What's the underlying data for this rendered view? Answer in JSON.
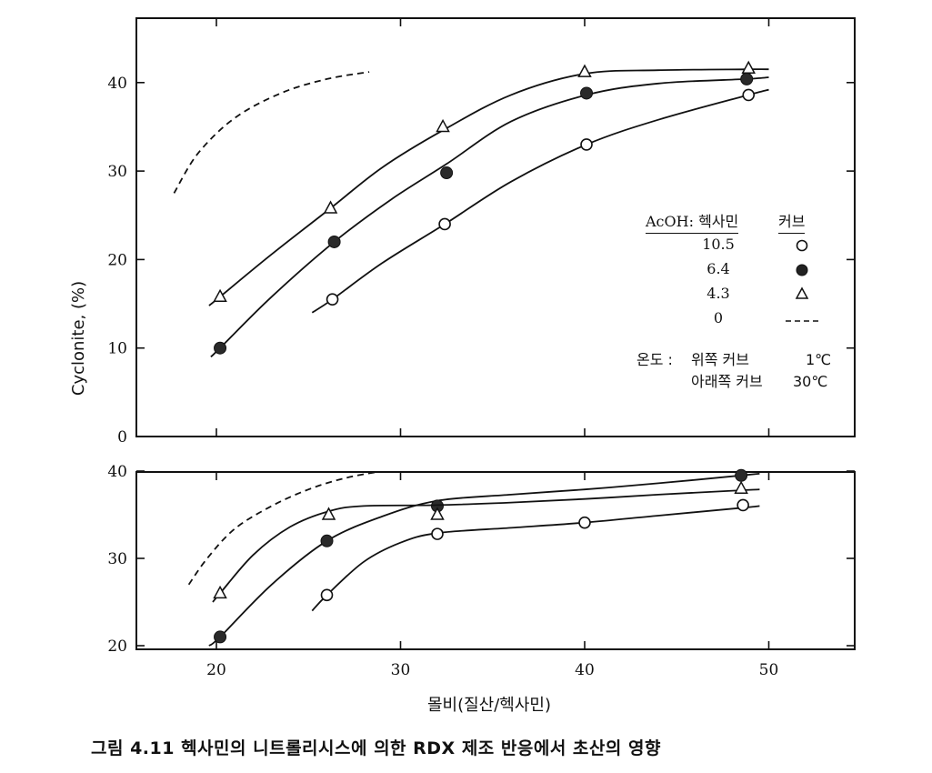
{
  "chart_data": [
    {
      "type": "line",
      "ylabel": "Cyclonite, (%)",
      "xlabel": "",
      "xlim": [
        16,
        55
      ],
      "ylim": [
        0,
        47
      ],
      "y_ticks": [
        "0",
        "10",
        "20",
        "30",
        "40"
      ],
      "y_tick_values": [
        0,
        10,
        20,
        30,
        40
      ],
      "x_tick_values": [
        20,
        30,
        40,
        50
      ],
      "series": [
        {
          "key": "c105",
          "name": "10.5",
          "marker": "open-circle",
          "x": [
            26.3,
            32.4,
            40.1,
            48.9
          ],
          "y": [
            15.5,
            24.0,
            33.0,
            38.6
          ],
          "curve_x": [
            25.2,
            26.3,
            29,
            32.4,
            36,
            40.1,
            44,
            48.9,
            50
          ],
          "curve_y": [
            14.0,
            15.5,
            19.6,
            24.0,
            28.8,
            33.0,
            35.8,
            38.6,
            39.2
          ]
        },
        {
          "key": "c64",
          "name": "6.4",
          "marker": "filled-circle",
          "x": [
            20.2,
            26.4,
            32.5,
            40.1,
            48.8
          ],
          "y": [
            10.0,
            22.0,
            29.8,
            38.8,
            40.4
          ],
          "curve_x": [
            19.7,
            20.2,
            23,
            26.4,
            29.5,
            32.5,
            36,
            40.1,
            44,
            48.8,
            50
          ],
          "curve_y": [
            9.0,
            10.0,
            15.8,
            22.0,
            26.8,
            30.8,
            35.6,
            38.6,
            39.9,
            40.4,
            40.6
          ]
        },
        {
          "key": "c43",
          "name": "4.3",
          "marker": "open-triangle",
          "x": [
            20.2,
            26.2,
            32.3,
            40.0,
            48.9
          ],
          "y": [
            15.8,
            25.8,
            35.0,
            41.2,
            41.6
          ],
          "curve_x": [
            19.6,
            20.2,
            23,
            26.2,
            29,
            32.3,
            36,
            40.0,
            44,
            48.9,
            50
          ],
          "curve_y": [
            14.8,
            15.8,
            20.6,
            25.8,
            30.4,
            34.6,
            38.6,
            41.0,
            41.4,
            41.5,
            41.5
          ]
        },
        {
          "key": "c0",
          "name": "0",
          "marker": "none",
          "dashed": true,
          "x": [],
          "y": [],
          "curve_x": [
            17.7,
            19,
            21,
            23.5,
            26,
            28.3
          ],
          "curve_y": [
            27.5,
            32.0,
            36.0,
            38.8,
            40.4,
            41.2
          ]
        }
      ]
    },
    {
      "type": "line",
      "ylabel": "",
      "xlabel": "몰비(질산/헥사민)",
      "xlim": [
        16,
        55
      ],
      "ylim": [
        20,
        40
      ],
      "y_ticks": [
        "20",
        "30",
        "40"
      ],
      "y_tick_values": [
        20,
        30,
        40
      ],
      "x_ticks": [
        "20",
        "30",
        "40",
        "50"
      ],
      "x_tick_values": [
        20,
        30,
        40,
        50
      ],
      "series": [
        {
          "key": "c105",
          "name": "10.5",
          "marker": "open-circle",
          "x": [
            26.0,
            32.0,
            40.0,
            48.6
          ],
          "y": [
            25.8,
            32.8,
            34.1,
            36.1
          ],
          "curve_x": [
            25.2,
            26.0,
            28,
            30,
            32.0,
            36,
            40.0,
            44,
            48.6,
            49.5
          ],
          "curve_y": [
            24.0,
            25.8,
            29.6,
            31.8,
            32.9,
            33.5,
            34.1,
            34.9,
            35.8,
            36.0
          ]
        },
        {
          "key": "c64",
          "name": "6.4",
          "marker": "filled-circle",
          "x": [
            20.2,
            26.0,
            32.0,
            48.5
          ],
          "y": [
            21.0,
            32.0,
            36.0,
            39.5
          ],
          "curve_x": [
            19.6,
            20.2,
            23,
            26.0,
            29,
            32.0,
            36,
            40,
            44,
            48.5,
            49.5
          ],
          "curve_y": [
            20.0,
            21.0,
            27.0,
            32.0,
            34.8,
            36.6,
            37.3,
            37.9,
            38.6,
            39.5,
            39.7
          ]
        },
        {
          "key": "c43",
          "name": "4.3",
          "marker": "open-triangle",
          "x": [
            20.2,
            26.1,
            32.0,
            48.5
          ],
          "y": [
            26.0,
            35.0,
            35.0,
            38.0
          ],
          "curve_x": [
            19.8,
            20.2,
            22,
            24,
            26.1,
            28,
            32.0,
            36,
            40,
            44,
            48.5,
            49.5
          ],
          "curve_y": [
            25.0,
            26.0,
            30.4,
            33.6,
            35.4,
            36.0,
            36.1,
            36.4,
            36.8,
            37.3,
            37.8,
            37.9
          ]
        },
        {
          "key": "c0",
          "name": "0",
          "marker": "none",
          "dashed": true,
          "x": [],
          "y": [],
          "curve_x": [
            18.5,
            19.5,
            21,
            23,
            25,
            27,
            29
          ],
          "curve_y": [
            27.0,
            30.0,
            33.4,
            36.0,
            37.9,
            39.2,
            40.0
          ]
        }
      ]
    }
  ],
  "legend": {
    "header_ratio": "AcOH: 헥사민",
    "header_curve": "커브",
    "rows": [
      {
        "ratio": "10.5",
        "symbol": "open-circle"
      },
      {
        "ratio": "6.4",
        "symbol": "filled-circle"
      },
      {
        "ratio": "4.3",
        "symbol": "open-triangle"
      },
      {
        "ratio": "0",
        "symbol": "dashed-line"
      }
    ]
  },
  "temperature_note": {
    "label": "온도 :",
    "upper": "위쪽 커브",
    "upper_value": "1℃",
    "lower": "아래쪽 커브",
    "lower_value": "30℃"
  },
  "caption": "그림 4.11  헥사민의 니트롤리시스에 의한 RDX 제조 반응에서 초산의 영향"
}
